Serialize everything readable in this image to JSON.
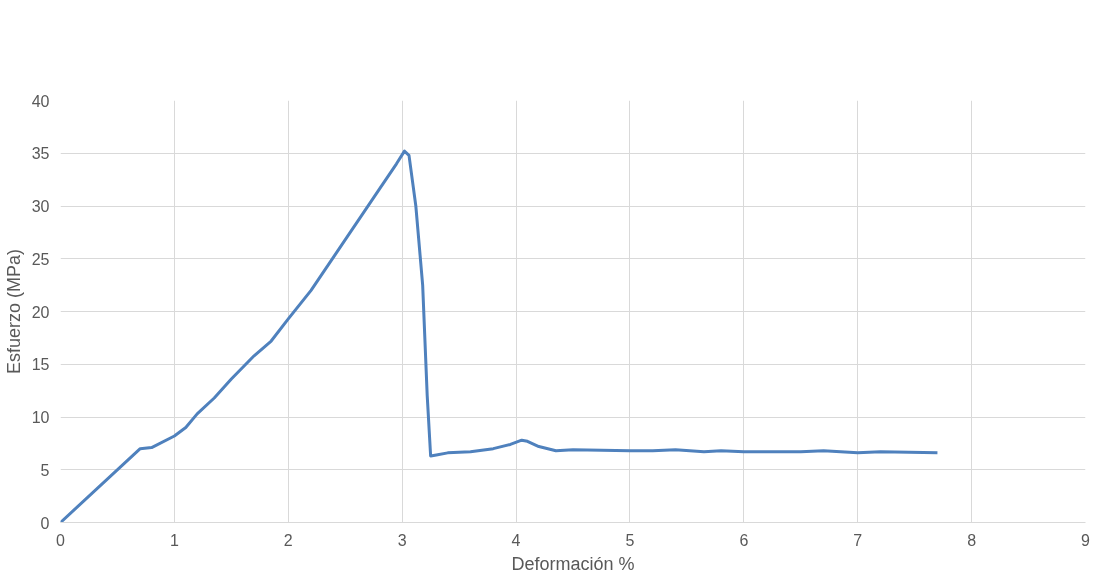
{
  "chart_data": {
    "type": "line",
    "xlabel": "Deformación %",
    "ylabel": "Esfuerzo (MPa)",
    "xlim": [
      0,
      9
    ],
    "xticks": [
      0,
      1,
      2,
      3,
      4,
      5,
      6,
      7,
      8,
      9
    ],
    "ylim": [
      0,
      40
    ],
    "yticks": [
      0,
      5,
      10,
      15,
      20,
      25,
      30,
      35,
      40
    ],
    "grid": true,
    "marker": "none",
    "line_style": "solid",
    "series": [
      {
        "color": "#4f81bd",
        "x": [
          0,
          0.7,
          0.8,
          1.0,
          1.1,
          1.2,
          1.35,
          1.5,
          1.7,
          1.85,
          2.0,
          2.2,
          2.4,
          2.6,
          2.8,
          2.95,
          3.02,
          3.06,
          3.12,
          3.18,
          3.22,
          3.25,
          3.3,
          3.4,
          3.6,
          3.8,
          3.95,
          4.05,
          4.1,
          4.2,
          4.35,
          4.5,
          5.0,
          5.2,
          5.4,
          5.65,
          5.8,
          6.0,
          6.5,
          6.7,
          7.0,
          7.2,
          7.7
        ],
        "values": [
          0,
          7.0,
          7.1,
          8.2,
          9.0,
          10.3,
          11.8,
          13.6,
          15.8,
          17.2,
          19.3,
          22.0,
          25.2,
          28.4,
          31.6,
          34.0,
          35.2,
          34.8,
          30,
          22.5,
          12,
          6.3,
          6.4,
          6.6,
          6.7,
          7.0,
          7.4,
          7.8,
          7.7,
          7.2,
          6.8,
          6.9,
          6.8,
          6.8,
          6.9,
          6.7,
          6.8,
          6.7,
          6.7,
          6.8,
          6.6,
          6.7,
          6.6
        ]
      }
    ]
  }
}
